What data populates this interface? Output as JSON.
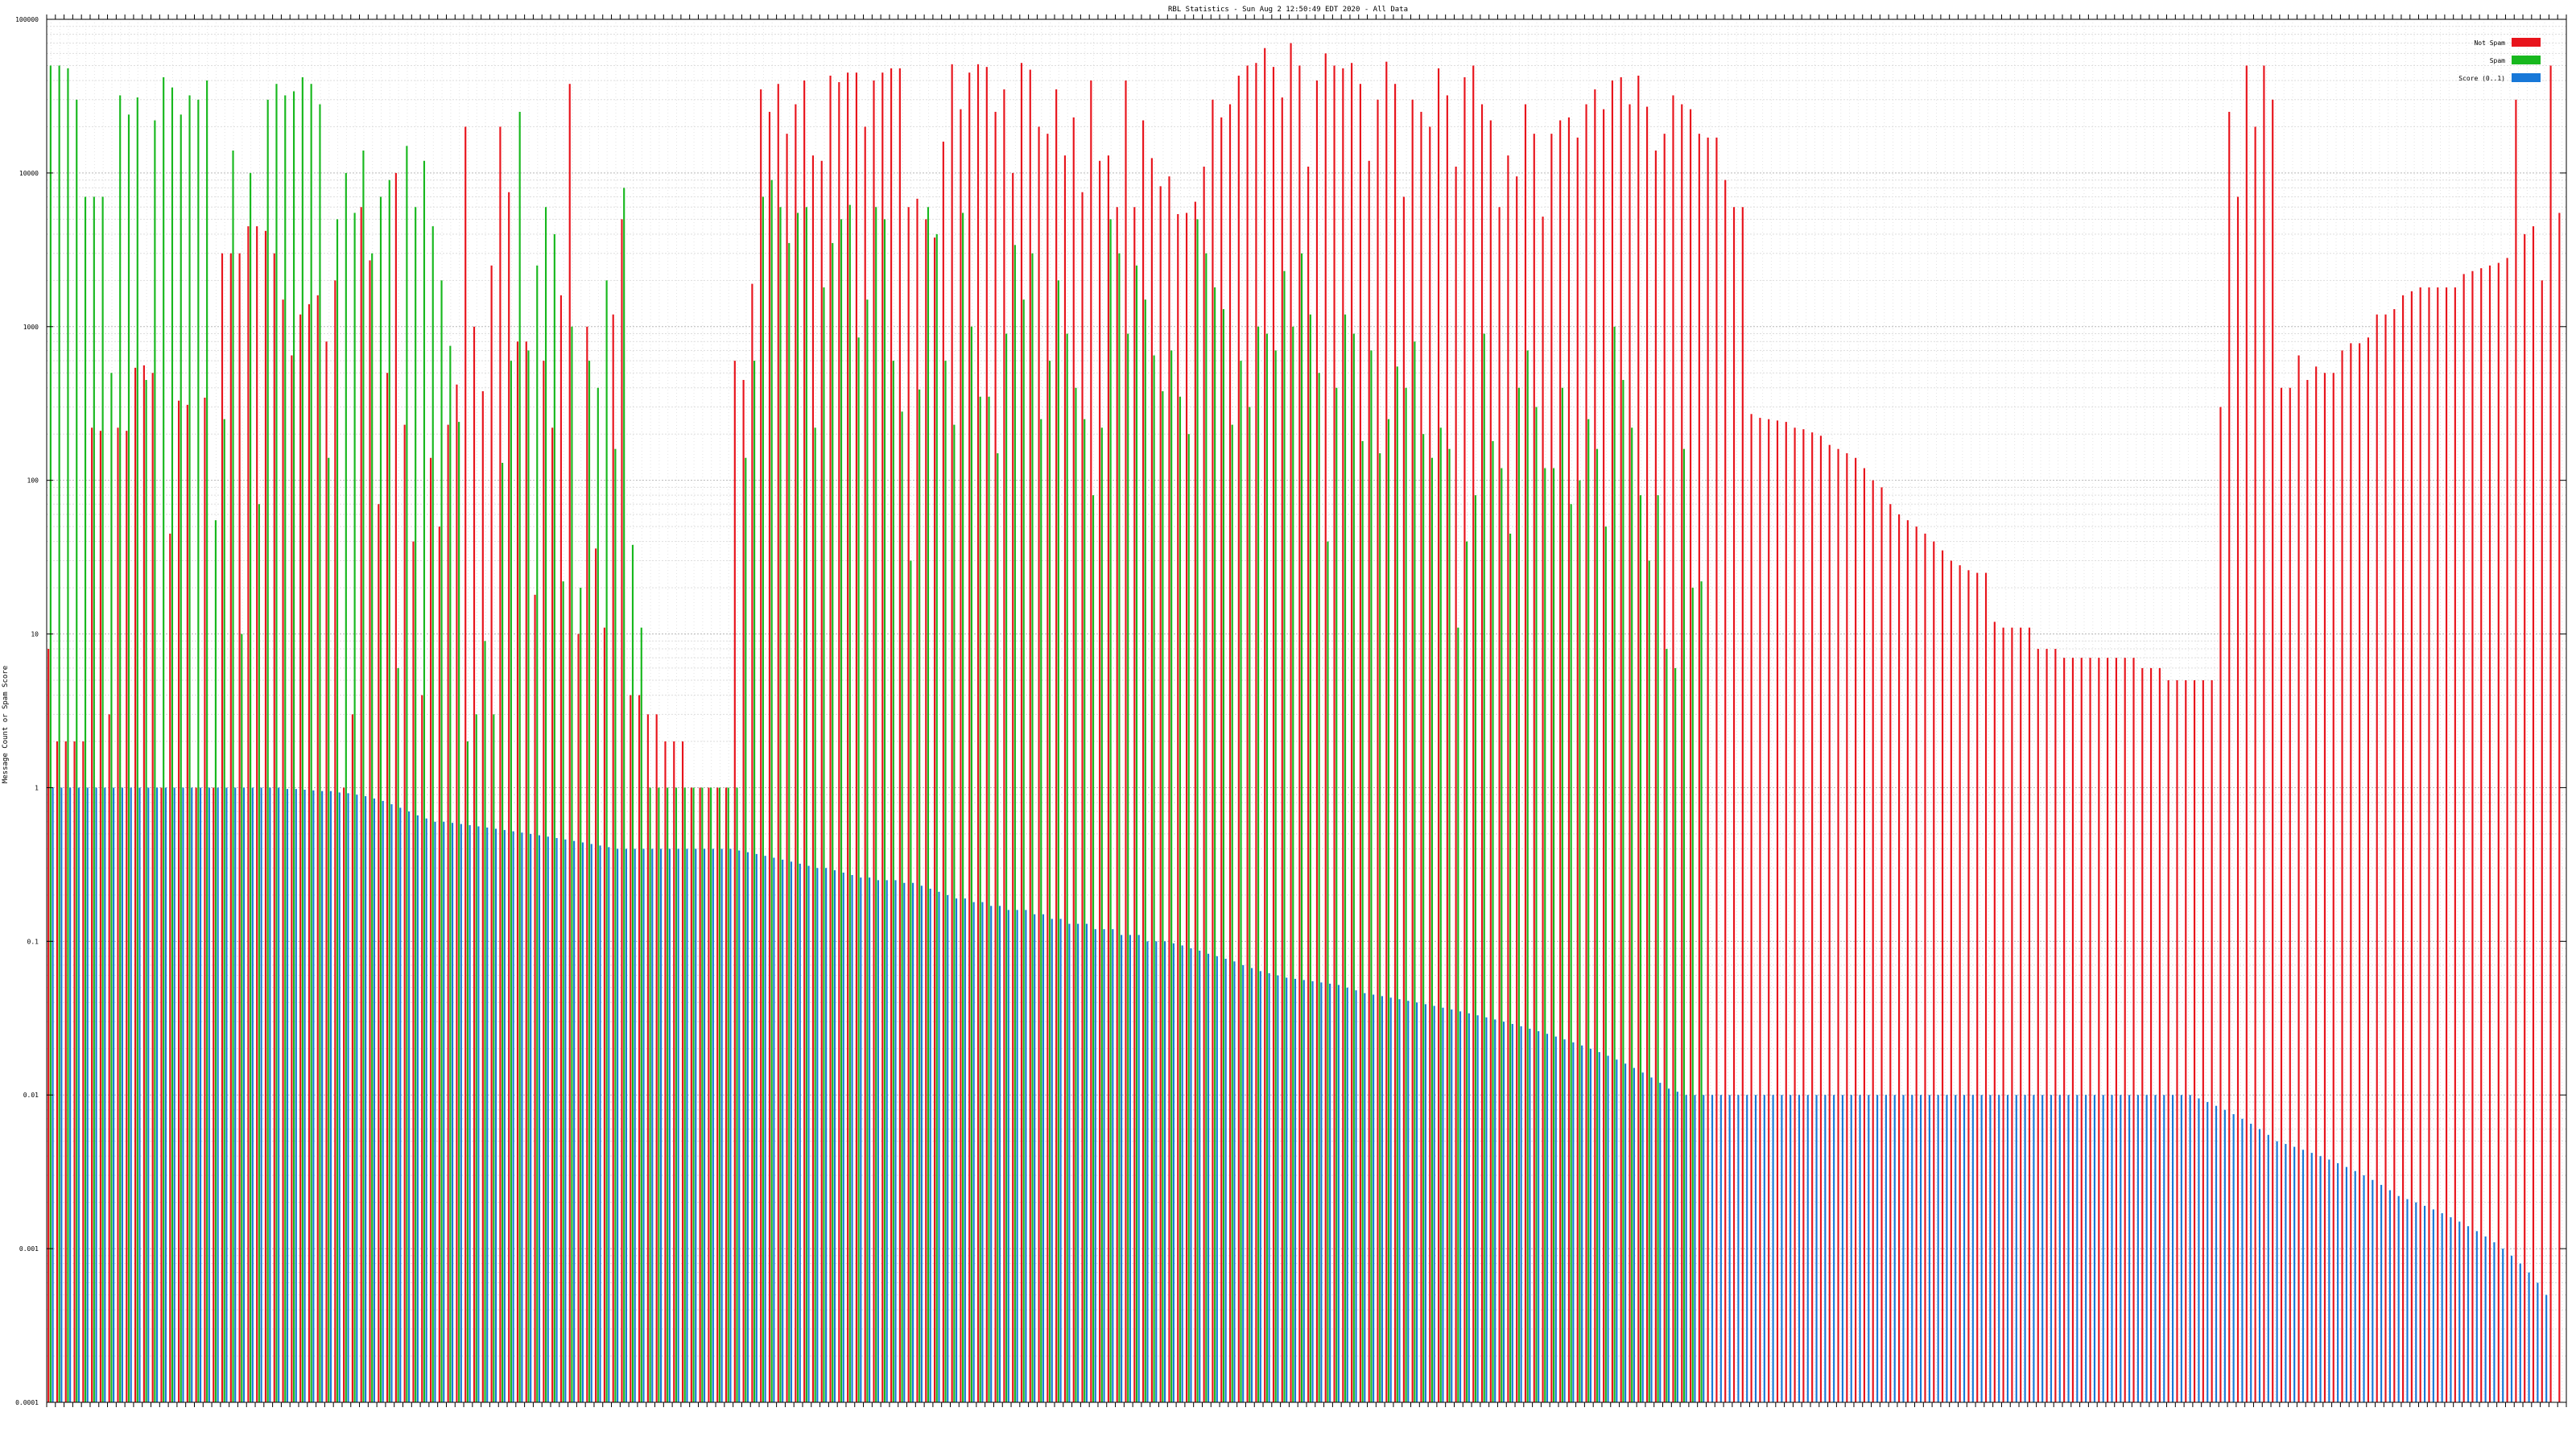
{
  "chart_data": {
    "type": "bar",
    "title": "RBL Statistics - Sun Aug  2 12:50:49 EDT 2020 - All Data",
    "xlabel": "",
    "ylabel": "Message Count or Spam Score",
    "yscale": "log",
    "ylim": [
      0.0001,
      100000
    ],
    "y_ticks": [
      "100000",
      "10000",
      "1000",
      "100",
      "10",
      "1",
      "0.1",
      "0.01",
      "0.001",
      "0.0001"
    ],
    "grid": true,
    "legend_position": "top-right",
    "series": [
      {
        "name": "Not Spam",
        "color": "#e8141c",
        "values": [
          8,
          2,
          2,
          2,
          2,
          220,
          210,
          3,
          220,
          210,
          540,
          560,
          500,
          1,
          45,
          330,
          310,
          1,
          345,
          1,
          3000,
          3000,
          3000,
          4500,
          4500,
          4200,
          3000,
          1500,
          650,
          1200,
          1400,
          1600,
          800,
          2000,
          1,
          3,
          6000,
          2700,
          70,
          500,
          10000,
          230,
          40,
          4,
          140,
          50,
          230,
          420,
          20000,
          1000,
          380,
          2500,
          20000,
          7500,
          800,
          800,
          18,
          600,
          220,
          1600,
          38000,
          10,
          1000,
          36,
          11,
          1200,
          5000,
          4,
          4,
          3,
          3,
          2,
          2,
          2,
          1,
          1,
          1,
          1,
          1,
          600,
          450,
          1900,
          35000,
          25000,
          38000,
          18000,
          28000,
          40000,
          13000,
          12000,
          43000,
          39000,
          45000,
          45000,
          20000,
          40000,
          45000,
          48000,
          48000,
          6000,
          6800,
          5000,
          3800,
          16000,
          51000,
          26000,
          45000,
          51000,
          49000,
          25000,
          35000,
          10000,
          52000,
          47000,
          20000,
          18000,
          35000,
          13000,
          23000,
          7500,
          40000,
          12000,
          13000,
          6000,
          40000,
          6000,
          22000,
          12500,
          8200,
          9500,
          5400,
          5500,
          6500,
          11000,
          30000,
          23000,
          28000,
          43000,
          50000,
          52000,
          65000,
          49000,
          31000,
          70000,
          50000,
          11000,
          40000,
          60000,
          50000,
          48000,
          52000,
          38000,
          12000,
          30000,
          53000,
          38000,
          7000,
          30000,
          25000,
          20000,
          48000,
          32000,
          11000,
          42000,
          50000,
          28000,
          22000,
          6000,
          13000,
          9500,
          28000,
          18000,
          5200,
          18000,
          22000,
          23000,
          17000,
          28000,
          35000,
          26000,
          40000,
          42000,
          28000,
          43000,
          27000,
          14000,
          18000,
          32000,
          28000,
          26000,
          18000,
          17000,
          17000,
          9000,
          6000,
          6000,
          270,
          255,
          250,
          245,
          240,
          220,
          215,
          205,
          195,
          170,
          160,
          150,
          140,
          120,
          100,
          90,
          70,
          60,
          55,
          50,
          45,
          40,
          35,
          30,
          28,
          26,
          25,
          25,
          12,
          11,
          11,
          11,
          11,
          8,
          8,
          8,
          7,
          7,
          7,
          7,
          7,
          7,
          7,
          7,
          7,
          6,
          6,
          6,
          5,
          5,
          5,
          5,
          5,
          5,
          300,
          25000,
          7000,
          50000,
          20000,
          50000,
          30000,
          400,
          400,
          650,
          450,
          550,
          500,
          500,
          700,
          780,
          780,
          850,
          1200,
          1200,
          1300,
          1600,
          1700,
          1800,
          1800,
          1800,
          1800,
          1800,
          2200,
          2300,
          2400,
          2500,
          2600,
          2800,
          30000,
          4000,
          4500,
          2000,
          50000,
          5500
        ],
        "notes": "approximate, read from log axis"
      },
      {
        "name": "Spam",
        "color": "#18b81e",
        "values": [
          50000,
          50000,
          48000,
          30000,
          7000,
          7000,
          7000,
          500,
          32000,
          24000,
          31000,
          450,
          22000,
          42000,
          36000,
          24000,
          32000,
          30000,
          40000,
          55,
          250,
          14000,
          10,
          10000,
          70,
          30000,
          38000,
          32000,
          34000,
          42000,
          38000,
          28000,
          140,
          5000,
          10000,
          5500,
          14000,
          3000,
          7000,
          9000,
          6,
          15000,
          6000,
          12000,
          4500,
          2000,
          750,
          240,
          2,
          3,
          9,
          3,
          130,
          600,
          25000,
          700,
          2500,
          6000,
          4000,
          22,
          1000,
          20,
          600,
          400,
          2000,
          160,
          8000,
          38,
          11,
          1,
          1,
          1,
          1,
          1,
          1,
          1,
          1,
          1,
          1,
          1,
          140,
          600,
          7000,
          9000,
          6000,
          3500,
          5500,
          6000,
          220,
          1800,
          3500,
          5000,
          6200,
          850,
          1500,
          6000,
          5000,
          600,
          280,
          30,
          390,
          6000,
          4000,
          600,
          230,
          5500,
          1000,
          350,
          350,
          150,
          900,
          3400,
          1500,
          3000,
          250,
          600,
          2000,
          900,
          400,
          250,
          80,
          220,
          5000,
          3000,
          900,
          2500,
          1500,
          650,
          380,
          700,
          350,
          200,
          5000,
          3000,
          1800,
          1300,
          230,
          600,
          300,
          1000,
          900,
          700,
          2300,
          1000,
          3000,
          1200,
          500,
          40,
          400,
          1200,
          900,
          180,
          700,
          150,
          250,
          550,
          400,
          800,
          200,
          140,
          220,
          160,
          11,
          40,
          80,
          900,
          180,
          120,
          45,
          400,
          700,
          300,
          120,
          120,
          400,
          70,
          100,
          250,
          160,
          50,
          1000,
          450,
          220,
          80,
          30,
          80,
          8,
          6,
          160,
          20,
          22
        ],
        "notes": "approximate, spam bars end where series stops"
      },
      {
        "name": "Score (0..1)",
        "color": "#1878d8",
        "values": [
          1,
          1,
          1,
          1,
          1,
          1,
          1,
          1,
          1,
          1,
          1,
          1,
          1,
          1,
          1,
          1,
          1,
          1,
          1,
          1,
          1,
          1,
          1,
          1,
          1,
          1,
          1,
          0.98,
          0.98,
          0.97,
          0.96,
          0.95,
          0.95,
          0.93,
          0.92,
          0.9,
          0.88,
          0.85,
          0.82,
          0.78,
          0.74,
          0.7,
          0.66,
          0.63,
          0.6,
          0.6,
          0.59,
          0.58,
          0.57,
          0.56,
          0.55,
          0.54,
          0.53,
          0.52,
          0.51,
          0.5,
          0.49,
          0.48,
          0.47,
          0.46,
          0.45,
          0.44,
          0.43,
          0.42,
          0.41,
          0.4,
          0.4,
          0.4,
          0.4,
          0.4,
          0.4,
          0.4,
          0.4,
          0.4,
          0.4,
          0.4,
          0.4,
          0.4,
          0.4,
          0.39,
          0.38,
          0.37,
          0.36,
          0.35,
          0.34,
          0.33,
          0.32,
          0.31,
          0.3,
          0.3,
          0.29,
          0.28,
          0.27,
          0.26,
          0.26,
          0.25,
          0.25,
          0.25,
          0.24,
          0.24,
          0.23,
          0.22,
          0.21,
          0.2,
          0.19,
          0.19,
          0.18,
          0.18,
          0.17,
          0.17,
          0.16,
          0.16,
          0.16,
          0.15,
          0.15,
          0.14,
          0.14,
          0.13,
          0.13,
          0.13,
          0.12,
          0.12,
          0.12,
          0.11,
          0.11,
          0.11,
          0.1,
          0.1,
          0.1,
          0.097,
          0.094,
          0.09,
          0.087,
          0.083,
          0.08,
          0.077,
          0.074,
          0.07,
          0.067,
          0.064,
          0.062,
          0.06,
          0.058,
          0.057,
          0.056,
          0.055,
          0.054,
          0.053,
          0.052,
          0.05,
          0.048,
          0.046,
          0.045,
          0.044,
          0.043,
          0.042,
          0.041,
          0.04,
          0.039,
          0.038,
          0.037,
          0.036,
          0.035,
          0.034,
          0.033,
          0.032,
          0.031,
          0.03,
          0.029,
          0.028,
          0.027,
          0.026,
          0.025,
          0.024,
          0.023,
          0.022,
          0.021,
          0.02,
          0.019,
          0.018,
          0.017,
          0.016,
          0.015,
          0.014,
          0.013,
          0.012,
          0.011,
          0.0105,
          0.01,
          0.01,
          0.01,
          0.01,
          0.01,
          0.01,
          0.01,
          0.01,
          0.01,
          0.01,
          0.01,
          0.01,
          0.01,
          0.01,
          0.01,
          0.01,
          0.01,
          0.01,
          0.01,
          0.01,
          0.01,
          0.01,
          0.01,
          0.01,
          0.01,
          0.01,
          0.01,
          0.01,
          0.01,
          0.01,
          0.01,
          0.01,
          0.01,
          0.01,
          0.01,
          0.01,
          0.01,
          0.01,
          0.01,
          0.01,
          0.01,
          0.01,
          0.01,
          0.01,
          0.01,
          0.01,
          0.01,
          0.01,
          0.01,
          0.01,
          0.01,
          0.01,
          0.01,
          0.01,
          0.01,
          0.01,
          0.01,
          0.01,
          0.01,
          0.0095,
          0.009,
          0.0085,
          0.008,
          0.0075,
          0.007,
          0.0065,
          0.006,
          0.0055,
          0.005,
          0.0048,
          0.0046,
          0.0044,
          0.0042,
          0.004,
          0.0038,
          0.0036,
          0.0034,
          0.0032,
          0.003,
          0.0028,
          0.0026,
          0.0024,
          0.0022,
          0.0021,
          0.002,
          0.0019,
          0.0018,
          0.0017,
          0.0016,
          0.0015,
          0.0014,
          0.0013,
          0.0012,
          0.0011,
          0.001,
          0.0009,
          0.0008,
          0.0007,
          0.0006,
          0.0005
        ]
      }
    ]
  }
}
